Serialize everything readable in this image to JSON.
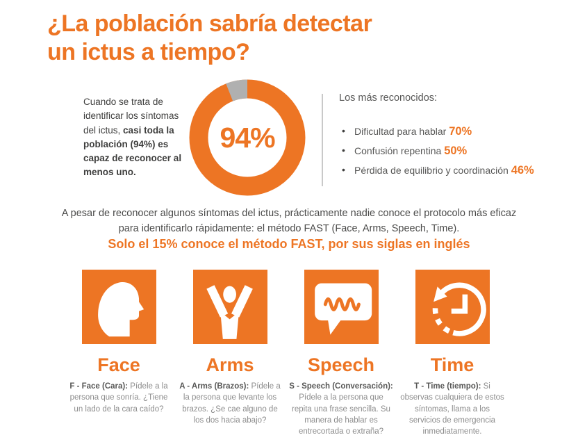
{
  "colors": {
    "orange": "#ED7524",
    "gray_slice": "#B0B0B0",
    "dark_text": "#3E3E3D",
    "body_text": "#575756",
    "muted_text": "#8C8C8C",
    "divider": "#C9C9C9"
  },
  "title": {
    "line1": "¿La población sabría detectar",
    "line2": "un ictus a tiempo?"
  },
  "overview": {
    "intro_regular": "Cuando se trata de identificar los síntomas del ictus,",
    "intro_bold": "casi toda la población (94%) es capaz de reconocer al menos uno.",
    "donut_value": "94%"
  },
  "recognized": {
    "heading": "Los más reconocidos:",
    "items": [
      {
        "label": "Dificultad para hablar",
        "value": "70%"
      },
      {
        "label": "Confusión repentina",
        "value": "50%"
      },
      {
        "label": "Pérdida de equilibrio y coordinación",
        "value": "46%"
      }
    ]
  },
  "fast": {
    "paragraph": "A pesar de reconocer algunos síntomas del ictus, prácticamente nadie conoce el protocolo más eficaz para identificarlo rápidamente: el método FAST (Face, Arms, Speech, Time).",
    "highlight": "Solo el 15% conoce el método FAST, por sus siglas en inglés",
    "steps": [
      {
        "id": "face",
        "icon": "head-profile-icon",
        "title": "Face",
        "lead": "F - Face (Cara):",
        "description": "Pídele a la persona que sonría. ¿Tiene un lado de la cara caído?"
      },
      {
        "id": "arms",
        "icon": "raised-arms-person-icon",
        "title": "Arms",
        "lead": "A - Arms (Brazos):",
        "description": "Pídele a la persona que levante los brazos. ¿Se cae alguno de los dos hacia abajo?"
      },
      {
        "id": "speech",
        "icon": "speech-bubble-icon",
        "title": "Speech",
        "lead": "S - Speech (Conversación):",
        "description": "Pídele a la persona que repita una frase sencilla. Su manera de hablar es entrecortada o extraña?"
      },
      {
        "id": "time",
        "icon": "clock-history-icon",
        "title": "Time",
        "lead": "T - Time (tiempo):",
        "description": "Si observas cualquiera de estos síntomas, llama a los servicios de emergencia inmediatamente."
      }
    ]
  },
  "chart_data": [
    {
      "type": "pie",
      "donut": true,
      "values": [
        94,
        6
      ],
      "colors": [
        "#ED7524",
        "#B0B0B0"
      ],
      "center_label": "94%",
      "gray_segment_position": "top, ending at 12 o'clock",
      "legend_position": "none"
    },
    {
      "type": "table",
      "title": "Los más reconocidos:",
      "categories": [
        "Dificultad para hablar",
        "Confusión repentina",
        "Pérdida de equilibrio y coordinación"
      ],
      "values": [
        70,
        50,
        46
      ],
      "unit": "%"
    }
  ]
}
